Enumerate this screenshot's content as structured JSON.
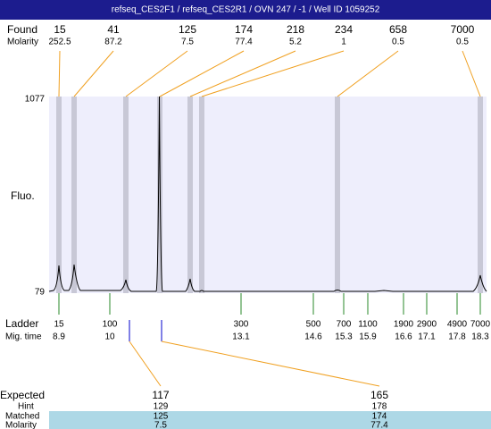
{
  "title": "refseq_CES2F1 / refseq_CES2R1 / OVN 247 / -1 / Well ID 1059252",
  "found": {
    "label": "Found",
    "sublabel": "Molarity",
    "sizes": [
      15,
      41,
      125,
      174,
      218,
      234,
      658,
      7000
    ],
    "molarities": [
      252.5,
      87.2,
      7.5,
      77.4,
      5.2,
      1,
      0.5,
      0.5
    ]
  },
  "plot": {
    "label": "Fluo.",
    "top_label": 1077,
    "bottom_label": 79
  },
  "ladder": {
    "label": "Ladder",
    "sublabel": "Mig. time",
    "sizes": [
      15,
      100,
      300,
      500,
      700,
      1100,
      1900,
      2900,
      4900,
      7000
    ],
    "times": [
      8.9,
      10,
      13.1,
      14.6,
      15.3,
      15.9,
      16.6,
      17.1,
      17.8,
      18.3
    ]
  },
  "expected": {
    "label": "Expected",
    "hint_label": "Hint",
    "matched_label": "Matched",
    "molarity_label": "Molarity",
    "expected": [
      117,
      165
    ],
    "hint": [
      129,
      178
    ],
    "matched": [
      125,
      174
    ],
    "molarity": [
      7.5,
      77.4
    ]
  }
}
